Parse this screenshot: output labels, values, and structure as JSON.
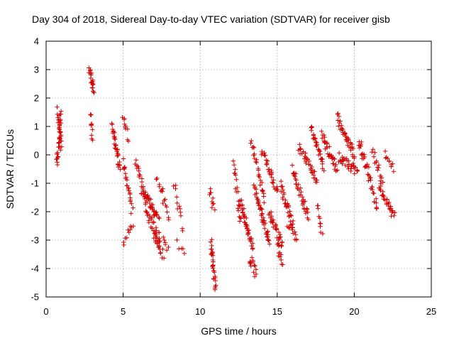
{
  "chart_data": {
    "type": "scatter",
    "title": "Day 304 of 2018, Sidereal Day-to-day VTEC variation (SDTVAR) for receiver gisb",
    "xlabel": "GPS time / hours",
    "ylabel": "SDTVAR / TECUs",
    "xlim": [
      0,
      25
    ],
    "ylim": [
      -5,
      4
    ],
    "xticks": [
      0,
      5,
      10,
      15,
      20,
      25
    ],
    "yticks": [
      -5,
      -4,
      -3,
      -2,
      -1,
      0,
      1,
      2,
      3,
      4
    ],
    "grid": true,
    "marker": "+",
    "color": "#d40000",
    "series": [
      {
        "name": "SDTVAR",
        "segments": [
          {
            "x0": 0.7,
            "x1": 0.95,
            "y0": -0.3,
            "y1": 1.5,
            "n": 30
          },
          {
            "x0": 0.75,
            "x1": 1.0,
            "y0": 1.6,
            "y1": 0.2,
            "n": 20
          },
          {
            "x0": 2.8,
            "x1": 3.1,
            "y0": 3.0,
            "y1": 2.2,
            "n": 20
          },
          {
            "x0": 2.85,
            "x1": 3.0,
            "y0": 1.5,
            "y1": 0.6,
            "n": 10
          },
          {
            "x0": 4.3,
            "x1": 4.8,
            "y0": 1.0,
            "y1": -0.5,
            "n": 30
          },
          {
            "x0": 5.0,
            "x1": 5.3,
            "y0": 1.3,
            "y1": 0.6,
            "n": 10
          },
          {
            "x0": 5.0,
            "x1": 5.6,
            "y0": -0.2,
            "y1": -2.0,
            "n": 22
          },
          {
            "x0": 5.0,
            "x1": 5.6,
            "y0": -3.0,
            "y1": -2.4,
            "n": 10
          },
          {
            "x0": 5.8,
            "x1": 6.5,
            "y0": -0.2,
            "y1": -1.6,
            "n": 20
          },
          {
            "x0": 6.2,
            "x1": 7.3,
            "y0": -1.2,
            "y1": -2.2,
            "n": 40
          },
          {
            "x0": 6.5,
            "x1": 7.4,
            "y0": -2.0,
            "y1": -3.0,
            "n": 30
          },
          {
            "x0": 7.0,
            "x1": 7.6,
            "y0": -2.8,
            "y1": -3.5,
            "n": 18
          },
          {
            "x0": 7.2,
            "x1": 8.0,
            "y0": -0.8,
            "y1": -2.2,
            "n": 16
          },
          {
            "x0": 7.6,
            "x1": 7.9,
            "y0": -3.0,
            "y1": -3.4,
            "n": 6
          },
          {
            "x0": 8.3,
            "x1": 8.9,
            "y0": -1.0,
            "y1": -2.6,
            "n": 12
          },
          {
            "x0": 8.5,
            "x1": 9.0,
            "y0": -3.1,
            "y1": -3.4,
            "n": 5
          },
          {
            "x0": 10.6,
            "x1": 10.9,
            "y0": -1.3,
            "y1": -1.9,
            "n": 10
          },
          {
            "x0": 10.7,
            "x1": 11.0,
            "y0": -3.1,
            "y1": -4.7,
            "n": 30
          },
          {
            "x0": 12.2,
            "x1": 12.6,
            "y0": -0.3,
            "y1": -2.4,
            "n": 20
          },
          {
            "x0": 12.6,
            "x1": 13.4,
            "y0": -1.6,
            "y1": -3.2,
            "n": 40
          },
          {
            "x0": 13.2,
            "x1": 13.6,
            "y0": -3.6,
            "y1": -4.2,
            "n": 14
          },
          {
            "x0": 13.5,
            "x1": 14.5,
            "y0": -1.2,
            "y1": -3.0,
            "n": 45
          },
          {
            "x0": 13.3,
            "x1": 14.2,
            "y0": 0.5,
            "y1": -1.6,
            "n": 25
          },
          {
            "x0": 14.0,
            "x1": 15.0,
            "y0": 0.1,
            "y1": -1.3,
            "n": 30
          },
          {
            "x0": 14.5,
            "x1": 15.3,
            "y0": -2.0,
            "y1": -3.2,
            "n": 30
          },
          {
            "x0": 15.0,
            "x1": 15.3,
            "y0": -3.1,
            "y1": -3.9,
            "n": 12
          },
          {
            "x0": 15.2,
            "x1": 16.0,
            "y0": -1.1,
            "y1": -2.4,
            "n": 30
          },
          {
            "x0": 15.7,
            "x1": 16.3,
            "y0": -2.4,
            "y1": -2.9,
            "n": 14
          },
          {
            "x0": 16.0,
            "x1": 17.0,
            "y0": -0.5,
            "y1": -2.2,
            "n": 35
          },
          {
            "x0": 16.4,
            "x1": 17.6,
            "y0": 0.3,
            "y1": -0.9,
            "n": 35
          },
          {
            "x0": 17.2,
            "x1": 18.0,
            "y0": 1.0,
            "y1": -0.5,
            "n": 30
          },
          {
            "x0": 17.6,
            "x1": 17.9,
            "y0": -1.7,
            "y1": -2.8,
            "n": 10
          },
          {
            "x0": 17.9,
            "x1": 18.9,
            "y0": 0.7,
            "y1": -0.5,
            "n": 35
          },
          {
            "x0": 18.9,
            "x1": 20.0,
            "y0": 1.3,
            "y1": 0.0,
            "n": 40
          },
          {
            "x0": 19.0,
            "x1": 20.2,
            "y0": -0.1,
            "y1": -0.6,
            "n": 35
          },
          {
            "x0": 20.3,
            "x1": 21.0,
            "y0": 0.5,
            "y1": -0.8,
            "n": 25
          },
          {
            "x0": 21.0,
            "x1": 21.5,
            "y0": -0.8,
            "y1": -2.0,
            "n": 16
          },
          {
            "x0": 21.2,
            "x1": 21.8,
            "y0": 0.2,
            "y1": -1.0,
            "n": 16
          },
          {
            "x0": 21.6,
            "x1": 22.6,
            "y0": -1.1,
            "y1": -2.2,
            "n": 30
          },
          {
            "x0": 22.0,
            "x1": 22.5,
            "y0": 0.1,
            "y1": -0.5,
            "n": 10
          }
        ]
      }
    ]
  }
}
